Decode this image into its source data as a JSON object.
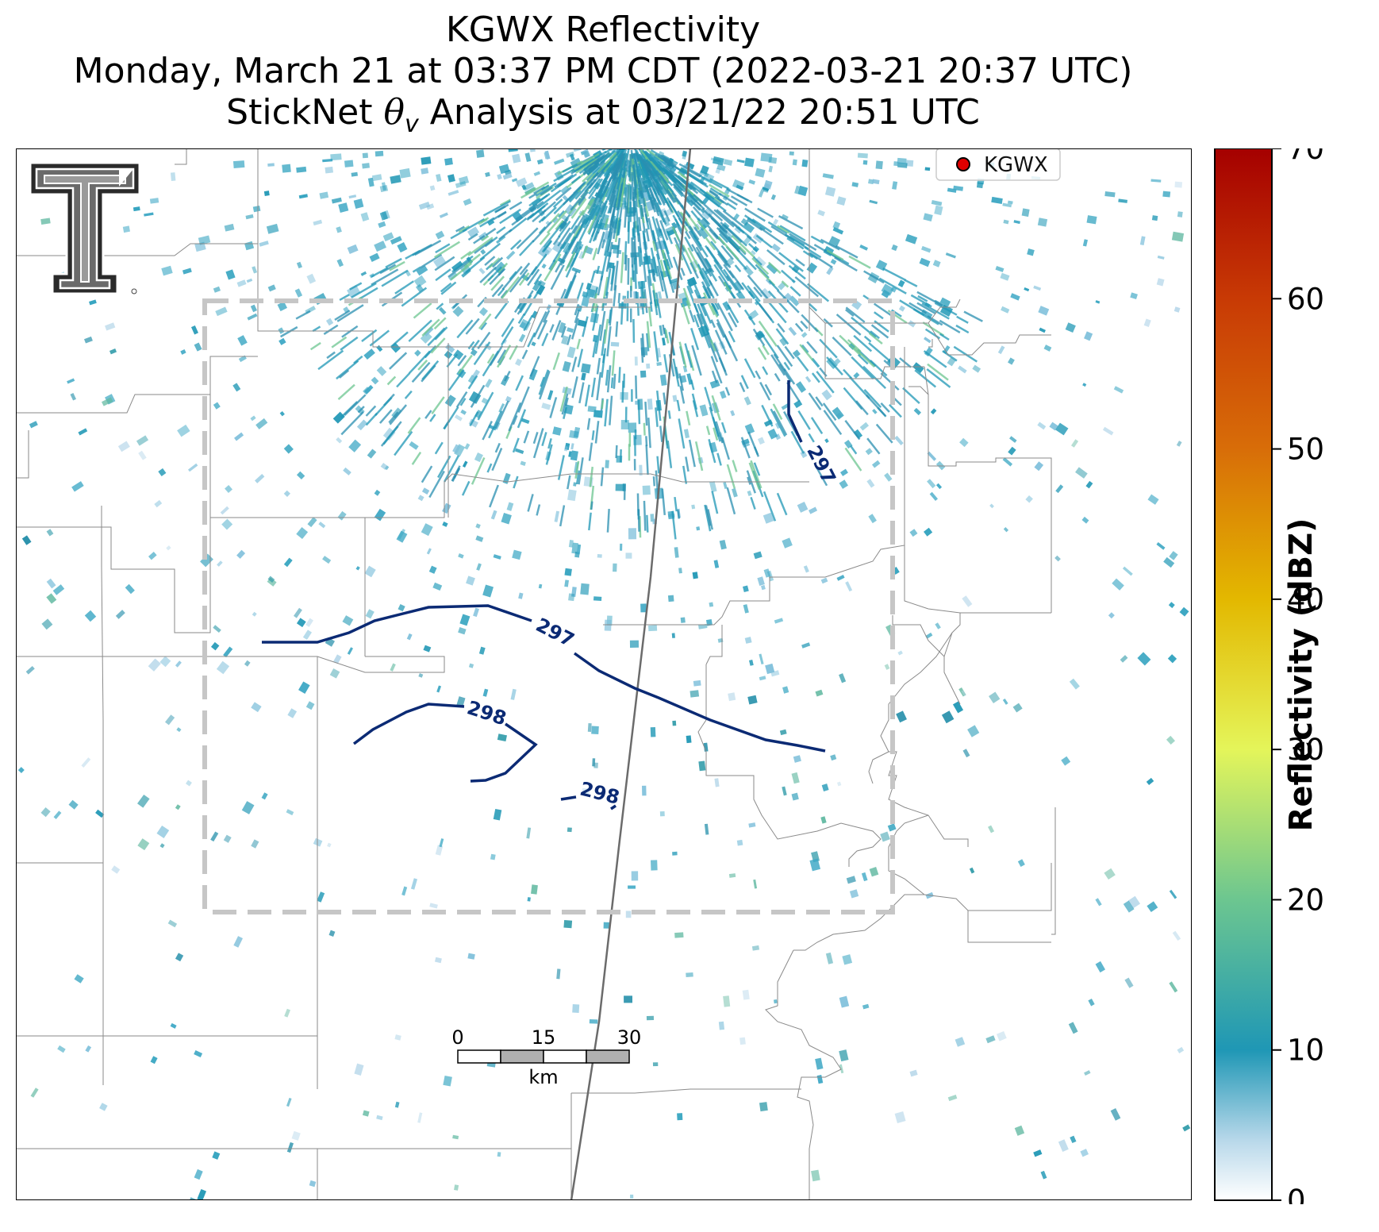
{
  "title": {
    "line1": "KGWX Reflectivity",
    "line2": "Monday, March 21 at 03:37 PM CDT (2022-03-21 20:37 UTC)",
    "line3_prefix": "StickNet ",
    "line3_symbol": "θ",
    "line3_subscript": "v",
    "line3_suffix": " Analysis at 03/21/22 20:51 UTC"
  },
  "legend": {
    "label": "KGWX",
    "marker_color": "#e00000"
  },
  "colorbar": {
    "label": "Reflectivity (dBZ)",
    "ticks": [
      "0",
      "10",
      "20",
      "30",
      "40",
      "50",
      "60",
      "70"
    ],
    "min": 0,
    "max": 70,
    "stops": [
      {
        "value": 0,
        "color": "#ffffff"
      },
      {
        "value": 4,
        "color": "#b8d8ea"
      },
      {
        "value": 10,
        "color": "#1f97b5"
      },
      {
        "value": 20,
        "color": "#6cc690"
      },
      {
        "value": 30,
        "color": "#e4f55a"
      },
      {
        "value": 40,
        "color": "#e3b800"
      },
      {
        "value": 50,
        "color": "#d86d08"
      },
      {
        "value": 60,
        "color": "#c83a05"
      },
      {
        "value": 70,
        "color": "#a50000"
      }
    ]
  },
  "contours": [
    {
      "label": "297",
      "color": "#0b2a74"
    },
    {
      "label": "297",
      "color": "#0b2a74"
    },
    {
      "label": "298",
      "color": "#0b2a74"
    },
    {
      "label": "298",
      "color": "#0b2a74"
    }
  ],
  "scale_bar": {
    "labels": [
      "0",
      "15",
      "30"
    ],
    "unit": "km"
  },
  "logo": {
    "alt": "Texas Tech University Double T logo"
  }
}
